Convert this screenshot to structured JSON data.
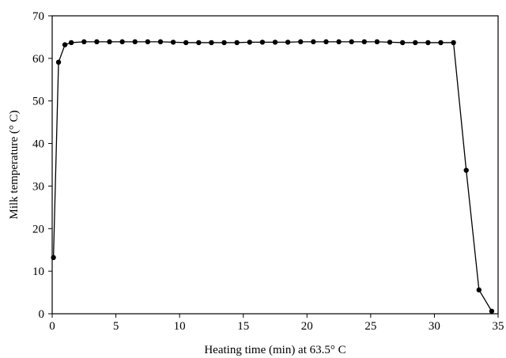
{
  "chart_data": {
    "type": "line",
    "title": "",
    "xlabel": "Heating time (min) at 63.5° C",
    "ylabel": "Milk temperature (° C)",
    "xlim": [
      0,
      35
    ],
    "ylim": [
      0,
      70
    ],
    "xticks": [
      0,
      5,
      10,
      15,
      20,
      25,
      30,
      35
    ],
    "yticks": [
      0,
      10,
      20,
      30,
      40,
      50,
      60,
      70
    ],
    "grid": false,
    "legend": "none",
    "series": [
      {
        "color": "#000000",
        "x": [
          0.1,
          0.5,
          1.0,
          1.5,
          2.5,
          3.5,
          4.5,
          5.5,
          6.5,
          7.5,
          8.5,
          9.5,
          10.5,
          11.5,
          12.5,
          13.5,
          14.5,
          15.5,
          16.5,
          17.5,
          18.5,
          19.5,
          20.5,
          21.5,
          22.5,
          23.5,
          24.5,
          25.5,
          26.5,
          27.5,
          28.5,
          29.5,
          30.5,
          31.5,
          32.5,
          33.5,
          34.5
        ],
        "y": [
          13.2,
          59.1,
          63.2,
          63.7,
          63.9,
          63.9,
          63.9,
          63.9,
          63.9,
          63.9,
          63.9,
          63.8,
          63.7,
          63.7,
          63.7,
          63.7,
          63.7,
          63.8,
          63.8,
          63.8,
          63.8,
          63.9,
          63.9,
          63.9,
          63.9,
          63.9,
          63.9,
          63.9,
          63.8,
          63.7,
          63.7,
          63.7,
          63.7,
          63.7,
          33.7,
          5.6,
          0.6
        ]
      }
    ]
  }
}
